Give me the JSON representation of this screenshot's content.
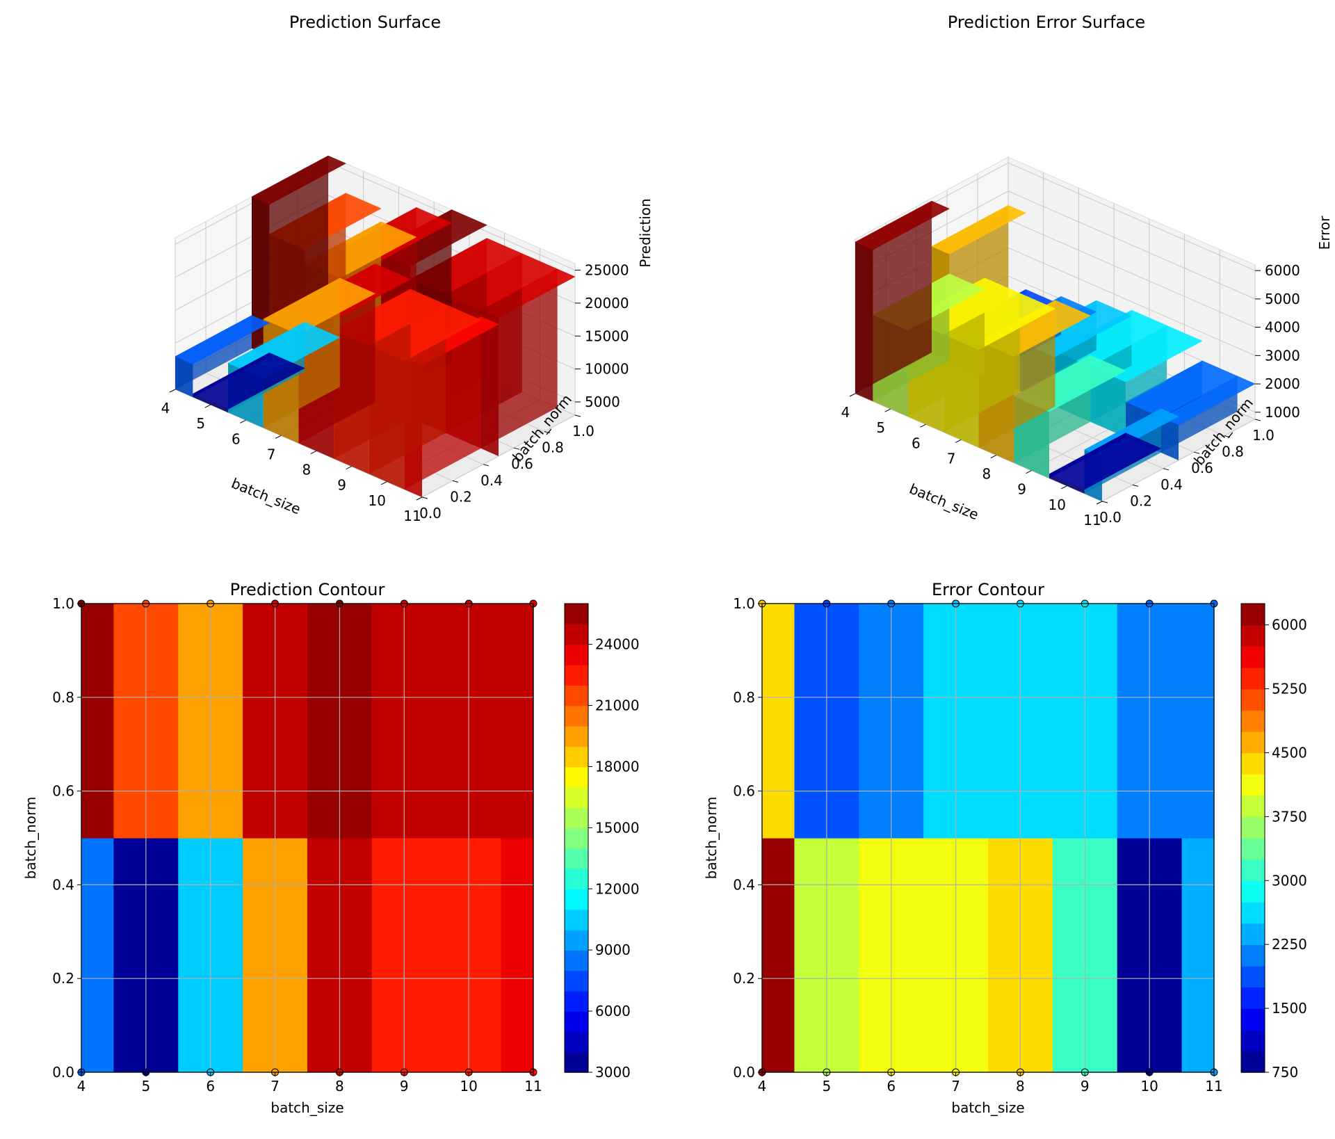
{
  "colormap": "jet",
  "chart_data": [
    {
      "type": "surface",
      "title": "Prediction Surface",
      "xlabel": "batch_size",
      "ylabel": "batch_norm",
      "zlabel": "Prediction",
      "x_ticks": [
        "4",
        "5",
        "6",
        "7",
        "8",
        "9",
        "10",
        "11"
      ],
      "y_ticks": [
        "0.0",
        "0.2",
        "0.4",
        "0.6",
        "0.8",
        "1.0"
      ],
      "z_ticks": [
        "5000",
        "10000",
        "15000",
        "20000",
        "25000"
      ],
      "xlim": [
        4,
        11
      ],
      "ylim": [
        0,
        1
      ],
      "zlim": [
        3000,
        26000
      ],
      "grid": true,
      "x": [
        4,
        5,
        6,
        7,
        8,
        9,
        10,
        11
      ],
      "batch_norm_0_values": [
        8000,
        3500,
        10500,
        19500,
        24000,
        22500,
        22500,
        23000
      ],
      "batch_norm_1_values": [
        26000,
        21500,
        19500,
        24000,
        26000,
        24000,
        24000,
        24000
      ]
    },
    {
      "type": "surface",
      "title": "Prediction Error Surface",
      "xlabel": "batch_size",
      "ylabel": "batch_norm",
      "zlabel": "Error",
      "x_ticks": [
        "4",
        "5",
        "6",
        "7",
        "8",
        "9",
        "10",
        "11"
      ],
      "y_ticks": [
        "0.0",
        "0.2",
        "0.4",
        "0.6",
        "0.8",
        "1.0"
      ],
      "z_ticks": [
        "1000",
        "2000",
        "3000",
        "4000",
        "5000",
        "6000"
      ],
      "xlim": [
        4,
        11
      ],
      "ylim": [
        0,
        1
      ],
      "zlim": [
        750,
        6200
      ],
      "grid": true,
      "x": [
        4,
        5,
        6,
        7,
        8,
        9,
        10,
        11
      ],
      "batch_norm_0_values": [
        6100,
        3800,
        4200,
        4200,
        4500,
        3100,
        900,
        2300
      ],
      "batch_norm_1_values": [
        4500,
        1800,
        2100,
        2500,
        2700,
        2700,
        2000,
        2000
      ]
    },
    {
      "type": "contour",
      "title": "Prediction Contour",
      "xlabel": "batch_size",
      "ylabel": "batch_norm",
      "x_ticks": [
        "4",
        "5",
        "6",
        "7",
        "8",
        "9",
        "10",
        "11"
      ],
      "y_ticks": [
        "0.0",
        "0.2",
        "0.4",
        "0.6",
        "0.8",
        "1.0"
      ],
      "colorbar_ticks": [
        "3000",
        "6000",
        "9000",
        "12000",
        "15000",
        "18000",
        "21000",
        "24000"
      ],
      "xlim": [
        4,
        11
      ],
      "ylim": [
        0,
        1
      ],
      "zlim": [
        3000,
        26000
      ],
      "levels": 23,
      "grid": true,
      "x": [
        4,
        5,
        6,
        7,
        8,
        9,
        10,
        11
      ],
      "batch_norm_0_values": [
        8000,
        3500,
        10500,
        19500,
        24000,
        22500,
        22500,
        23000
      ],
      "batch_norm_1_values": [
        26000,
        21500,
        19500,
        24000,
        26000,
        24000,
        24000,
        24000
      ],
      "boundary_y": 0.5
    },
    {
      "type": "contour",
      "title": "Error Contour",
      "xlabel": "batch_size",
      "ylabel": "batch_norm",
      "x_ticks": [
        "4",
        "5",
        "6",
        "7",
        "8",
        "9",
        "10",
        "11"
      ],
      "y_ticks": [
        "0.0",
        "0.2",
        "0.4",
        "0.6",
        "0.8",
        "1.0"
      ],
      "colorbar_ticks": [
        "750",
        "1500",
        "2250",
        "3000",
        "3750",
        "4500",
        "5250",
        "6000"
      ],
      "xlim": [
        4,
        11
      ],
      "ylim": [
        0,
        1
      ],
      "zlim": [
        750,
        6250
      ],
      "levels": 22,
      "grid": true,
      "x": [
        4,
        5,
        6,
        7,
        8,
        9,
        10,
        11
      ],
      "batch_norm_0_values": [
        6100,
        3800,
        4200,
        4200,
        4500,
        3100,
        900,
        2300
      ],
      "batch_norm_1_values": [
        4500,
        1800,
        2100,
        2500,
        2700,
        2700,
        2000,
        2000
      ],
      "boundary_y": 0.5
    }
  ]
}
